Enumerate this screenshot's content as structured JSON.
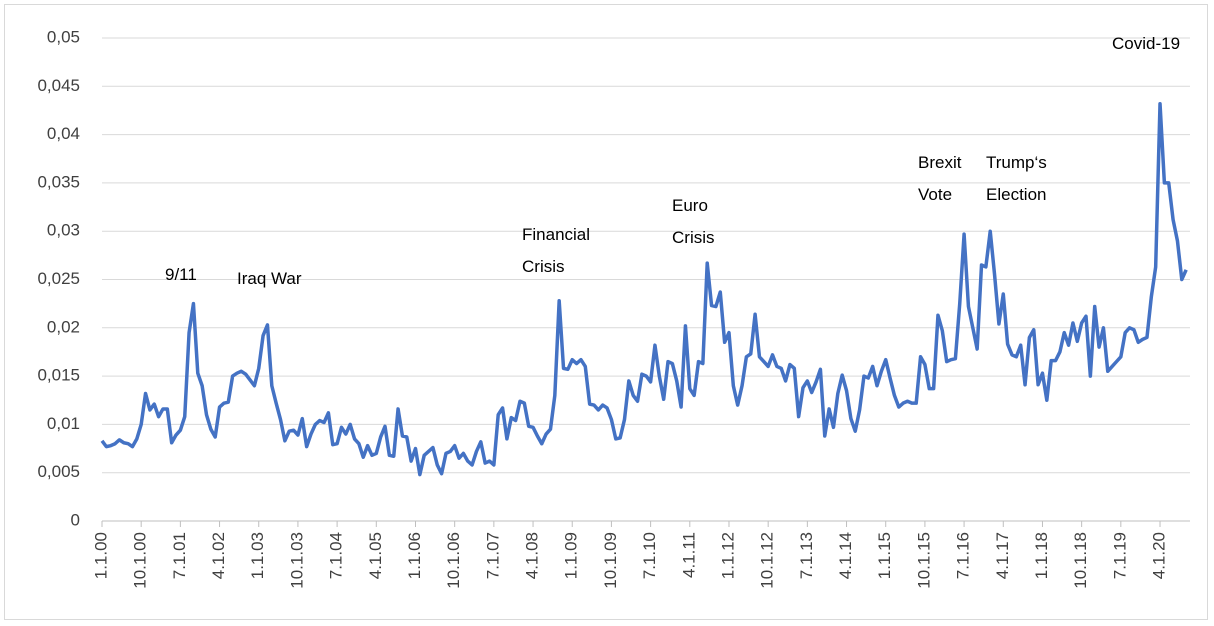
{
  "chart_data": {
    "type": "line",
    "color": "#4472c4",
    "grid": true,
    "categories": [
      "1.1.00",
      null,
      null,
      null,
      null,
      null,
      null,
      null,
      null,
      "10.1.00",
      null,
      null,
      null,
      null,
      null,
      null,
      null,
      null,
      "7.1.01",
      null,
      null,
      null,
      null,
      null,
      null,
      null,
      null,
      "4.1.02",
      null,
      null,
      null,
      null,
      null,
      null,
      null,
      null,
      "1.1.03",
      null,
      null,
      null,
      null,
      null,
      null,
      null,
      null,
      "10.1.03",
      null,
      null,
      null,
      null,
      null,
      null,
      null,
      null,
      "7.1.04",
      null,
      null,
      null,
      null,
      null,
      null,
      null,
      null,
      "4.1.05",
      null,
      null,
      null,
      null,
      null,
      null,
      null,
      null,
      "1.1.06",
      null,
      null,
      null,
      null,
      null,
      null,
      null,
      null,
      "10.1.06",
      null,
      null,
      null,
      null,
      null,
      null,
      null,
      null,
      "7.1.07",
      null,
      null,
      null,
      null,
      null,
      null,
      null,
      null,
      "4.1.08",
      null,
      null,
      null,
      null,
      null,
      null,
      null,
      null,
      "1.1.09",
      null,
      null,
      null,
      null,
      null,
      null,
      null,
      null,
      "10.1.09",
      null,
      null,
      null,
      null,
      null,
      null,
      null,
      null,
      "7.1.10",
      null,
      null,
      null,
      null,
      null,
      null,
      null,
      null,
      "4.1.11",
      null,
      null,
      null,
      null,
      null,
      null,
      null,
      null,
      "1.1.12",
      null,
      null,
      null,
      null,
      null,
      null,
      null,
      null,
      "10.1.12",
      null,
      null,
      null,
      null,
      null,
      null,
      null,
      null,
      "7.1.13",
      null,
      null,
      null,
      null,
      null,
      null,
      null,
      null,
      "4.1.14",
      null,
      null,
      null,
      null,
      null,
      null,
      null,
      null,
      "1.1.15",
      null,
      null,
      null,
      null,
      null,
      null,
      null,
      null,
      "10.1.15",
      null,
      null,
      null,
      null,
      null,
      null,
      null,
      null,
      "7.1.16",
      null,
      null,
      null,
      null,
      null,
      null,
      null,
      null,
      "4.1.17",
      null,
      null,
      null,
      null,
      null,
      null,
      null,
      null,
      "1.1.18",
      null,
      null,
      null,
      null,
      null,
      null,
      null,
      null,
      "10.1.18",
      null,
      null,
      null,
      null,
      null,
      null,
      null,
      null,
      "7.1.19",
      null,
      null,
      null,
      null,
      null,
      null,
      null,
      null,
      "4.1.20",
      null,
      null,
      null,
      null,
      null,
      null
    ],
    "values": [
      0.0083,
      0.0077,
      0.0078,
      0.008,
      0.0084,
      0.0081,
      0.008,
      0.0077,
      0.0085,
      0.01,
      0.0132,
      0.0115,
      0.0121,
      0.0108,
      0.0116,
      0.0116,
      0.0081,
      0.0089,
      0.0094,
      0.0108,
      0.0195,
      0.0225,
      0.0153,
      0.014,
      0.011,
      0.0095,
      0.0087,
      0.0118,
      0.0122,
      0.0123,
      0.015,
      0.0153,
      0.0155,
      0.0152,
      0.0146,
      0.014,
      0.0158,
      0.0192,
      0.0203,
      0.014,
      0.0122,
      0.0105,
      0.0083,
      0.0093,
      0.0094,
      0.0089,
      0.0106,
      0.0077,
      0.009,
      0.01,
      0.0104,
      0.0102,
      0.0112,
      0.0079,
      0.008,
      0.0097,
      0.009,
      0.01,
      0.0085,
      0.008,
      0.0066,
      0.0078,
      0.0068,
      0.007,
      0.0087,
      0.0098,
      0.0068,
      0.0067,
      0.0116,
      0.0088,
      0.0087,
      0.0062,
      0.0075,
      0.0048,
      0.0068,
      0.0072,
      0.0076,
      0.0058,
      0.0049,
      0.007,
      0.0072,
      0.0078,
      0.0065,
      0.007,
      0.0062,
      0.0058,
      0.0072,
      0.0082,
      0.006,
      0.0062,
      0.0058,
      0.011,
      0.0117,
      0.0085,
      0.0107,
      0.0104,
      0.0124,
      0.0122,
      0.0098,
      0.0097,
      0.0088,
      0.008,
      0.009,
      0.0095,
      0.013,
      0.0228,
      0.0158,
      0.0157,
      0.0167,
      0.0163,
      0.0167,
      0.016,
      0.0121,
      0.012,
      0.0115,
      0.012,
      0.0117,
      0.0105,
      0.0085,
      0.0086,
      0.0105,
      0.0145,
      0.013,
      0.0124,
      0.0152,
      0.015,
      0.0144,
      0.0182,
      0.015,
      0.0126,
      0.0165,
      0.0163,
      0.0145,
      0.0118,
      0.0202,
      0.0137,
      0.013,
      0.0165,
      0.0163,
      0.0267,
      0.0223,
      0.0222,
      0.0237,
      0.0185,
      0.0195,
      0.014,
      0.012,
      0.014,
      0.017,
      0.0173,
      0.0214,
      0.017,
      0.0165,
      0.016,
      0.0172,
      0.016,
      0.0158,
      0.0145,
      0.0162,
      0.0158,
      0.0108,
      0.0138,
      0.0145,
      0.0133,
      0.0144,
      0.0157,
      0.0088,
      0.0116,
      0.0097,
      0.0132,
      0.0151,
      0.0135,
      0.0106,
      0.0093,
      0.0115,
      0.015,
      0.0148,
      0.016,
      0.014,
      0.0155,
      0.0167,
      0.0148,
      0.013,
      0.0118,
      0.0122,
      0.0124,
      0.0122,
      0.0122,
      0.017,
      0.0162,
      0.0137,
      0.0137,
      0.0213,
      0.0197,
      0.0165,
      0.0167,
      0.0168,
      0.0225,
      0.0297,
      0.0222,
      0.02,
      0.0178,
      0.0265,
      0.0263,
      0.03,
      0.0255,
      0.0204,
      0.0235,
      0.0183,
      0.0172,
      0.017,
      0.0182,
      0.0141,
      0.019,
      0.0198,
      0.0141,
      0.0153,
      0.0125,
      0.0166,
      0.0166,
      0.0175,
      0.0195,
      0.0182,
      0.0205,
      0.0186,
      0.0205,
      0.0212,
      0.015,
      0.0222,
      0.018,
      0.02,
      0.0155,
      0.016,
      0.0165,
      0.017,
      0.0195,
      0.02,
      0.0198,
      0.0185,
      0.0188,
      0.019,
      0.0232,
      0.0263,
      0.0432,
      0.035,
      0.035,
      0.0312,
      0.029,
      0.025,
      0.026
    ],
    "ylim": [
      0,
      0.05
    ],
    "yticks": [
      0,
      {
        "value": 0.005,
        "label": "0,005"
      },
      {
        "value": 0.01,
        "label": "0,01"
      },
      {
        "value": 0.015,
        "label": "0,015"
      },
      {
        "value": 0.02,
        "label": "0,02"
      },
      {
        "value": 0.025,
        "label": "0,025"
      },
      {
        "value": 0.03,
        "label": "0,03"
      },
      {
        "value": 0.035,
        "label": "0,035"
      },
      {
        "value": 0.04,
        "label": "0,04"
      },
      {
        "value": 0.045,
        "label": "0,045"
      },
      {
        "value": 0.05,
        "label": "0,05"
      }
    ],
    "annotations": [
      [
        "9/11"
      ],
      [
        "Iraq War"
      ],
      [
        "Financial",
        "Crisis"
      ],
      [
        "Euro",
        "Crisis"
      ],
      [
        "Brexit",
        "Vote"
      ],
      [
        "Trump‘s",
        "Election"
      ],
      [
        "Covid-19"
      ]
    ]
  }
}
